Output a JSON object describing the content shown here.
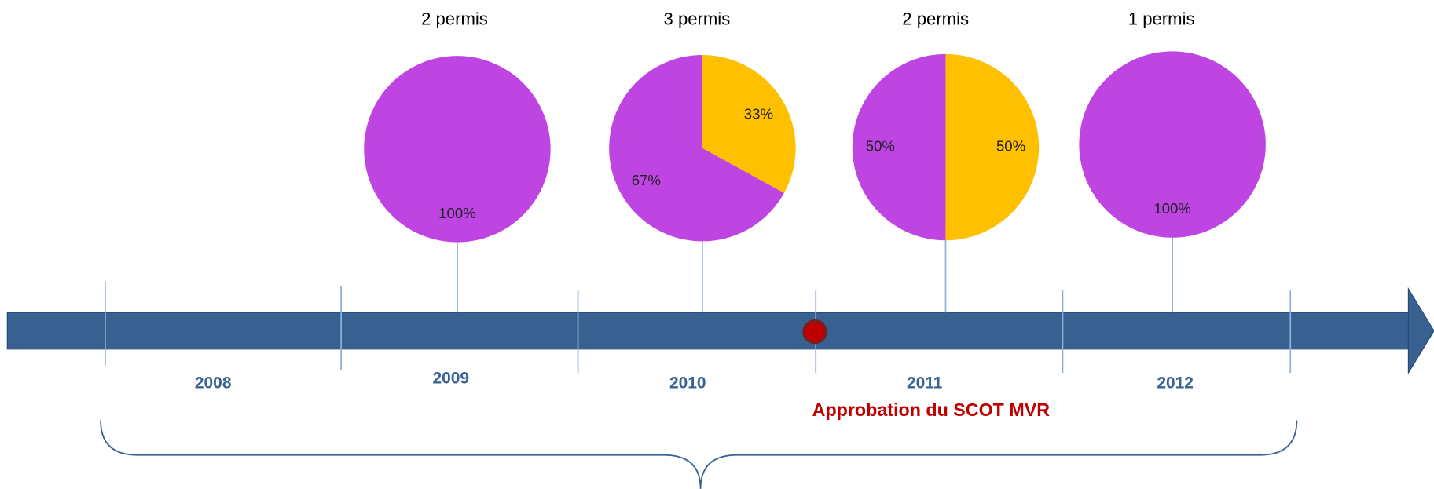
{
  "chart_data": [
    {
      "type": "pie",
      "title": "2 permis",
      "values": [
        100
      ],
      "value_labels": [
        "100%"
      ],
      "colors": [
        "#bf45e3"
      ]
    },
    {
      "type": "pie",
      "title": "3 permis",
      "values": [
        33,
        67
      ],
      "value_labels": [
        "33%",
        "67%"
      ],
      "colors": [
        "#ffc000",
        "#bf45e3"
      ]
    },
    {
      "type": "pie",
      "title": "2 permis",
      "values": [
        50,
        50
      ],
      "value_labels": [
        "50%",
        "50%"
      ],
      "colors": [
        "#ffc000",
        "#bf45e3"
      ]
    },
    {
      "type": "pie",
      "title": "1 permis",
      "values": [
        100
      ],
      "value_labels": [
        "100%"
      ],
      "colors": [
        "#bf45e3"
      ]
    }
  ],
  "timeline": {
    "years": [
      "2008",
      "2009",
      "2010",
      "2011",
      "2012"
    ],
    "annotation": "Approbation du SCOT MVR"
  }
}
